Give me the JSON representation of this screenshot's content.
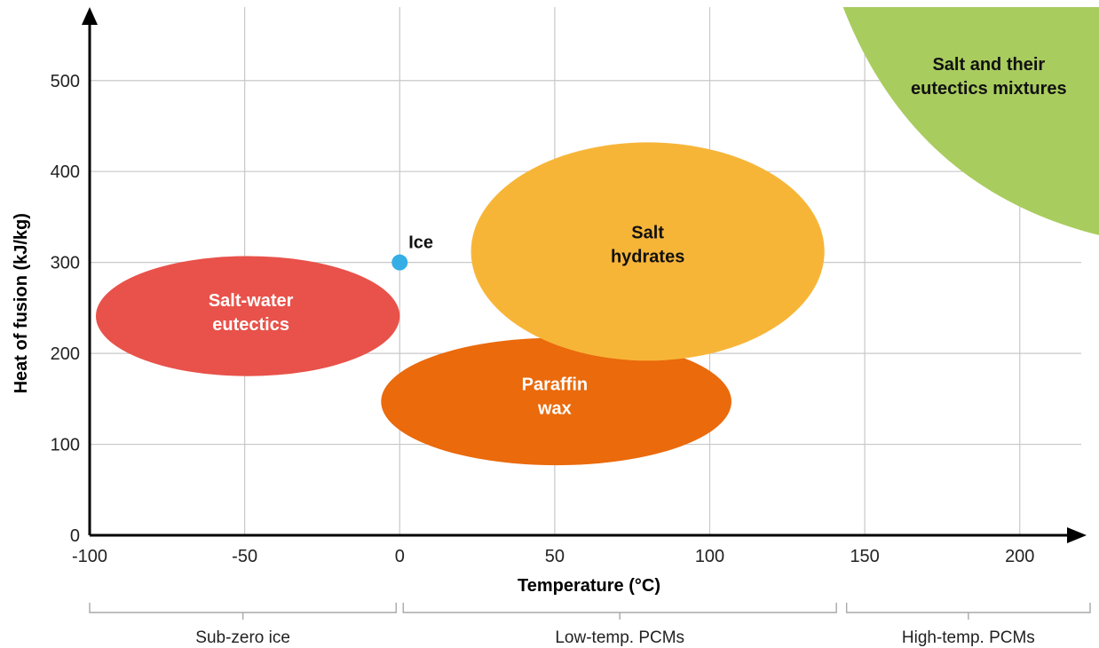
{
  "colors": {
    "salt_water": "#e8524a",
    "paraffin": "#ea6a0c",
    "salt_hydrates": "#f7b538",
    "salt_mixtures": "#a9cc5f",
    "ice_point": "#35aee6",
    "grid": "#c8c8c8",
    "axis": "#000000"
  },
  "chart_data": {
    "type": "scatter",
    "xlabel": "Temperature (°C)",
    "ylabel": "Heat of fusion (kJ/kg)",
    "xlim": [
      -100,
      225
    ],
    "ylim": [
      0,
      570
    ],
    "x_ticks": [
      -100,
      -50,
      0,
      50,
      100,
      150,
      200
    ],
    "y_ticks": [
      0,
      100,
      200,
      300,
      400,
      500
    ],
    "grid": true,
    "points": [
      {
        "label": "Ice",
        "x": 0,
        "y": 300
      }
    ],
    "regions": [
      {
        "label_lines": [
          "Salt-water",
          "eutectics"
        ],
        "color_key": "salt_water",
        "x_range": [
          -98,
          0
        ],
        "y_range": [
          175,
          307
        ],
        "label_color": "#ffffff"
      },
      {
        "label_lines": [
          "Paraffin",
          "wax"
        ],
        "color_key": "paraffin",
        "x_range": [
          -6,
          107
        ],
        "y_range": [
          77,
          217
        ],
        "label_color": "#ffffff"
      },
      {
        "label_lines": [
          "Salt",
          "hydrates"
        ],
        "color_key": "salt_hydrates",
        "x_range": [
          23,
          137
        ],
        "y_range": [
          192,
          432
        ],
        "label_color": "#111111"
      },
      {
        "label_lines": [
          "Salt and their",
          "eutectics mixtures"
        ],
        "color_key": "salt_mixtures",
        "x_range": [
          143,
          225
        ],
        "y_range": [
          330,
          570
        ],
        "label_color": "#111111"
      }
    ],
    "ranges": [
      {
        "label": "Sub-zero ice",
        "x_range": [
          -100,
          0
        ]
      },
      {
        "label": "Low-temp. PCMs",
        "x_range": [
          0,
          142
        ]
      },
      {
        "label": "High-temp. PCMs",
        "x_range": [
          143,
          225
        ]
      }
    ]
  }
}
